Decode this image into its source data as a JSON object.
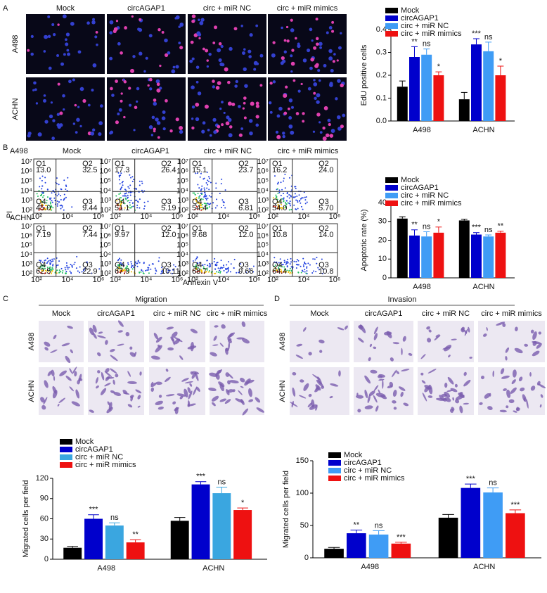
{
  "panel_labels": [
    "A",
    "B",
    "C",
    "D"
  ],
  "conditions": [
    "Mock",
    "circAGAP1",
    "circ + miR NC",
    "circ + miR mimics"
  ],
  "cell_lines": [
    "A498",
    "ACHN"
  ],
  "migration_title": "Migration",
  "invasion_title": "Invasion",
  "flow": {
    "x_label": "Annexin V",
    "y_label": "PI",
    "xticks": [
      "10²",
      "10⁴",
      "10⁶"
    ],
    "yticks": [
      "10⁷",
      "10⁶",
      "10⁵",
      "10⁴",
      "10³",
      "10²"
    ],
    "quadrant_names": [
      "Q1",
      "Q2",
      "Q3",
      "Q4"
    ],
    "rows": [
      [
        [
          "13.0",
          "32.5",
          "9.44",
          "45.0"
        ],
        [
          "17.3",
          "26.4",
          "5.19",
          "51.1"
        ],
        [
          "15.1",
          "23.7",
          "6.81",
          "54.4"
        ],
        [
          "16.2",
          "24.0",
          "5.70",
          "54.0"
        ]
      ],
      [
        [
          "7.19",
          "7.44",
          "22.9",
          "62.5"
        ],
        [
          "9.97",
          "12.0",
          "10.11",
          "67.9"
        ],
        [
          "9.68",
          "12.0",
          "9.66",
          "68.7"
        ],
        [
          "10.8",
          "14.0",
          "10.8",
          "64.4"
        ]
      ]
    ]
  },
  "chart_data": [
    {
      "type": "bar",
      "y_label": "EdU positive cells",
      "categories": [
        "A498",
        "ACHN"
      ],
      "ylim": [
        0,
        0.4
      ],
      "yticks": [
        {
          "value": 0,
          "label": "0.0"
        },
        0.1,
        0.2,
        0.3,
        0.4
      ],
      "series": [
        {
          "name": "Mock",
          "color": "#000000",
          "values": [
            0.15,
            0.095
          ],
          "errors": [
            0.025,
            0.03
          ],
          "sig": [
            null,
            null
          ]
        },
        {
          "name": "circAGAP1",
          "color": "#0000cc",
          "values": [
            0.28,
            0.335
          ],
          "errors": [
            0.045,
            0.025
          ],
          "sig": [
            "**",
            "***"
          ]
        },
        {
          "name": "circ + miR NC",
          "color": "#3f9cf5",
          "values": [
            0.29,
            0.305
          ],
          "errors": [
            0.025,
            0.04
          ],
          "sig": [
            "ns",
            "ns"
          ]
        },
        {
          "name": "circ + miR mimics",
          "color": "#ee1111",
          "values": [
            0.2,
            0.2
          ],
          "errors": [
            0.015,
            0.04
          ],
          "sig": [
            "*",
            "*"
          ]
        }
      ]
    },
    {
      "type": "bar",
      "y_label": "Apoptotic rate (%)",
      "categories": [
        "A498",
        "ACHN"
      ],
      "ylim": [
        0,
        40
      ],
      "yticks": [
        0,
        10,
        20,
        30,
        40
      ],
      "series": [
        {
          "name": "Mock",
          "color": "#000000",
          "values": [
            31.5,
            30.5
          ],
          "errors": [
            1,
            0.7
          ],
          "sig": [
            null,
            null
          ]
        },
        {
          "name": "circAGAP1",
          "color": "#0000cc",
          "values": [
            22.5,
            23
          ],
          "errors": [
            3,
            1
          ],
          "sig": [
            "**",
            "***"
          ]
        },
        {
          "name": "circ + miR NC",
          "color": "#3f9cf5",
          "values": [
            22,
            22
          ],
          "errors": [
            2.5,
            0.8
          ],
          "sig": [
            "ns",
            "ns"
          ]
        },
        {
          "name": "circ + miR mimics",
          "color": "#ee1111",
          "values": [
            24,
            24
          ],
          "errors": [
            3,
            0.8
          ],
          "sig": [
            "*",
            "**"
          ]
        }
      ]
    },
    {
      "type": "bar",
      "y_label": "Migrated cells per field",
      "categories": [
        "A498",
        "ACHN"
      ],
      "ylim": [
        0,
        120
      ],
      "yticks": [
        0,
        30,
        60,
        90,
        120
      ],
      "series": [
        {
          "name": "Mock",
          "color": "#000000",
          "values": [
            17,
            57
          ],
          "errors": [
            2,
            5
          ],
          "sig": [
            null,
            null
          ]
        },
        {
          "name": "circAGAP1",
          "color": "#0000cc",
          "values": [
            60,
            111
          ],
          "errors": [
            6,
            4
          ],
          "sig": [
            "***",
            "***"
          ]
        },
        {
          "name": "circ + miR NC",
          "color": "#3aa6e0",
          "values": [
            50,
            98
          ],
          "errors": [
            4,
            9
          ],
          "sig": [
            "ns",
            "ns"
          ]
        },
        {
          "name": "circ + miR mimics",
          "color": "#ee1111",
          "values": [
            25,
            73
          ],
          "errors": [
            4,
            3
          ],
          "sig": [
            "**",
            "*"
          ]
        }
      ]
    },
    {
      "type": "bar",
      "y_label": "Migrated cells per field",
      "categories": [
        "A498",
        "ACHN"
      ],
      "ylim": [
        0,
        150
      ],
      "yticks": [
        0,
        50,
        100,
        150
      ],
      "series": [
        {
          "name": "Mock",
          "color": "#000000",
          "values": [
            14,
            62
          ],
          "errors": [
            2,
            5
          ],
          "sig": [
            null,
            null
          ]
        },
        {
          "name": "circAGAP1",
          "color": "#0000cc",
          "values": [
            38,
            108
          ],
          "errors": [
            5,
            6
          ],
          "sig": [
            "**",
            "***"
          ]
        },
        {
          "name": "circ + miR NC",
          "color": "#3f9cf5",
          "values": [
            36,
            101
          ],
          "errors": [
            6,
            7
          ],
          "sig": [
            "ns",
            "ns"
          ]
        },
        {
          "name": "circ + miR mimics",
          "color": "#ee1111",
          "values": [
            22,
            69
          ],
          "errors": [
            2,
            5
          ],
          "sig": [
            "***",
            "***"
          ]
        }
      ]
    }
  ]
}
